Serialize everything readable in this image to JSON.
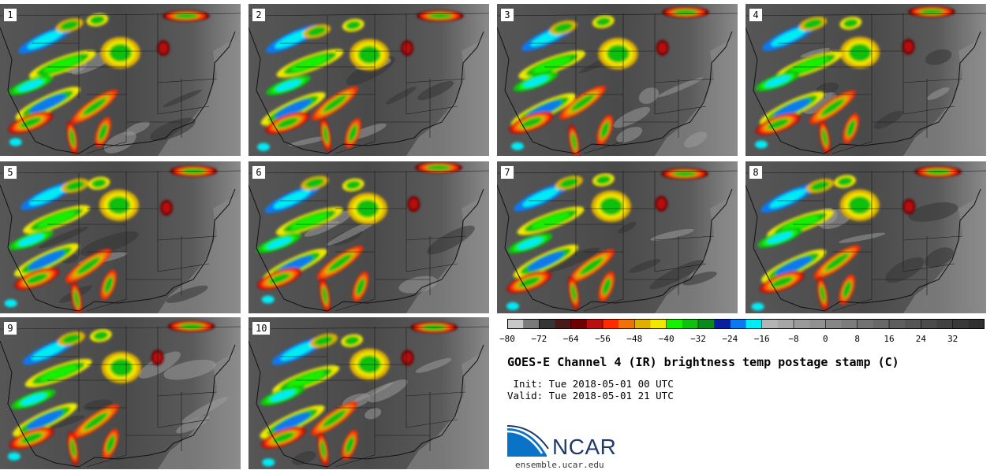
{
  "panels": [
    {
      "label": "1"
    },
    {
      "label": "2"
    },
    {
      "label": "3"
    },
    {
      "label": "4"
    },
    {
      "label": "5"
    },
    {
      "label": "6"
    },
    {
      "label": "7"
    },
    {
      "label": "8"
    },
    {
      "label": "9"
    },
    {
      "label": "10"
    }
  ],
  "colorbar": {
    "ticks": [
      "−80",
      "−72",
      "−64",
      "−56",
      "−48",
      "−40",
      "−32",
      "−24",
      "−16",
      "−8",
      "0",
      "8",
      "16",
      "24",
      "32"
    ],
    "colors": [
      "#c8c8c8",
      "#7a7a7a",
      "#353535",
      "#4a1a1a",
      "#6e0000",
      "#b80f0f",
      "#ff2a00",
      "#f0700a",
      "#e0b000",
      "#f0e800",
      "#14f000",
      "#10c010",
      "#0a8a1e",
      "#0a1ea0",
      "#0a78f0",
      "#00ebf5",
      "#b4b4b4",
      "#a6a6a6",
      "#9a9a9a",
      "#909090",
      "#868686",
      "#7c7c7c",
      "#727272",
      "#686868",
      "#5e5e5e",
      "#555555",
      "#4b4b4b",
      "#424242",
      "#393939",
      "#303030"
    ]
  },
  "title": "GOES-E Channel 4 (IR) brightness temp postage stamp (C)",
  "init_line": " Init: Tue 2018-05-01 00 UTC",
  "valid_line": "Valid: Tue 2018-05-01 21 UTC",
  "logo": {
    "text": "NCAR",
    "url": "ensemble.ucar.edu",
    "brand_color": "#1f3a68",
    "accent_color": "#0a73c8"
  }
}
